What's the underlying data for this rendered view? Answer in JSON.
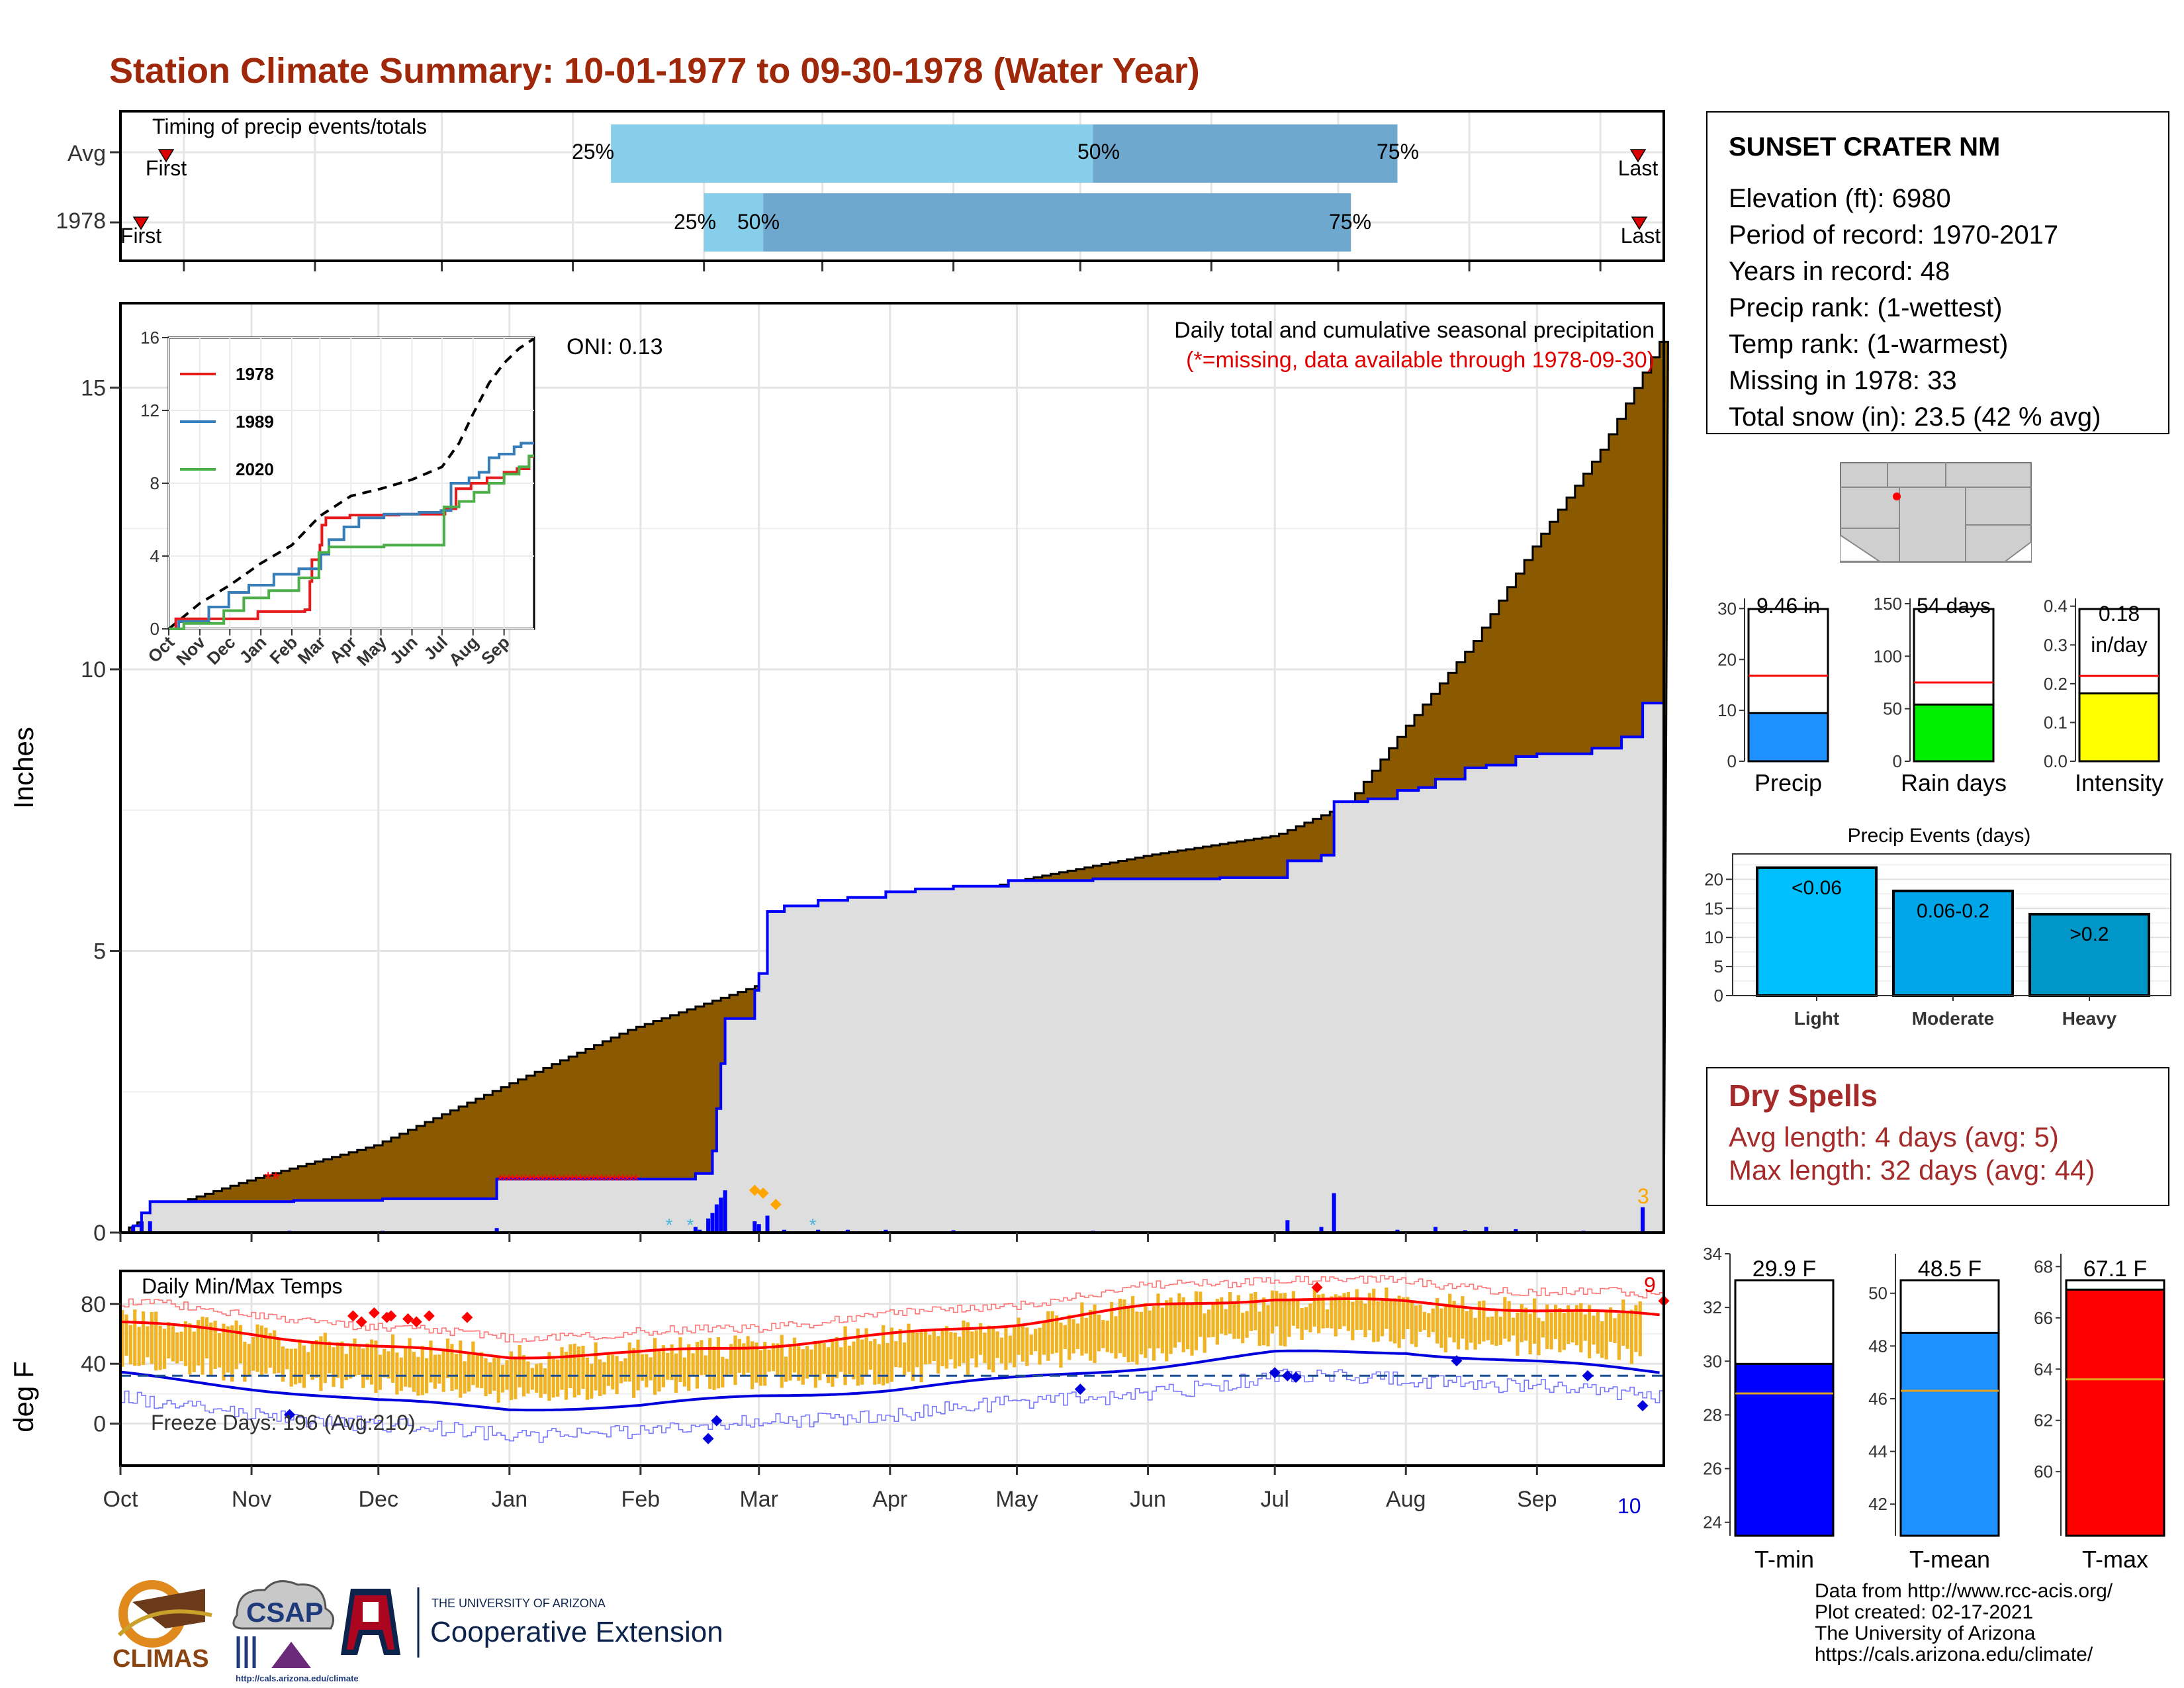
{
  "title": "Station Climate Summary: 10-01-1977 to 09-30-1978 (Water Year)",
  "timing": {
    "label": "Timing of precip events/totals",
    "rows": [
      {
        "label": "Avg",
        "p25": "Jan 25",
        "p50": "May 19",
        "p75": "Jul 30",
        "first_label": "First",
        "last_label": "Last"
      },
      {
        "label": "1978",
        "p25": "Feb 16",
        "p50": "Mar 1",
        "p75": "Jul 19",
        "first_label": "First",
        "last_label": "Last"
      }
    ],
    "pct_labels": [
      "25%",
      "50%",
      "75%"
    ]
  },
  "station": {
    "name": "SUNSET CRATER NM",
    "lines": [
      "Elevation (ft): 6980",
      "Period of record: 1970-2017",
      "Years in record: 48",
      "Precip rank:  (1-wettest)",
      "Temp rank:  (1-warmest)",
      "Missing in 1978: 33",
      "Total snow (in): 23.5 (42 % avg)"
    ]
  },
  "precip_chart": {
    "title": "Daily total and cumulative seasonal precipitation",
    "subtitle": "(*=missing, data available through 1978-09-30)",
    "oni": "ONI: 0.13",
    "ylabel": "Inches",
    "yticks": [
      "0",
      "5",
      "10",
      "15"
    ],
    "count_label": "3",
    "ylim": [
      0,
      16.5
    ]
  },
  "inset": {
    "yticks": [
      "0",
      "4",
      "8",
      "12",
      "16"
    ],
    "xticks": [
      "Oct",
      "Nov",
      "Dec",
      "Jan",
      "Feb",
      "Mar",
      "Apr",
      "May",
      "Jun",
      "Jul",
      "Aug",
      "Sep"
    ],
    "legend": [
      {
        "name": "1978",
        "color": "#e41a1c"
      },
      {
        "name": "1989",
        "color": "#377eb8"
      },
      {
        "name": "2020",
        "color": "#4daf4a"
      }
    ]
  },
  "temp_chart": {
    "title": "Daily Min/Max Temps",
    "freeze": "Freeze Days: 196 (Avg:210)",
    "ylabel": "deg F",
    "yticks": [
      "0",
      "40",
      "80"
    ],
    "count_high": "9",
    "count_low": "10",
    "freeze_line": 32
  },
  "months": [
    "Oct",
    "Nov",
    "Dec",
    "Jan",
    "Feb",
    "Mar",
    "Apr",
    "May",
    "Jun",
    "Jul",
    "Aug",
    "Sep"
  ],
  "bar_panels": {
    "precip": {
      "label": "Precip",
      "value_text": "9.46 in",
      "value": 9.46,
      "avg": 16.8,
      "yticks": [
        "0",
        "10",
        "20",
        "30"
      ],
      "color": "#1e90ff"
    },
    "raindays": {
      "label": "Rain days",
      "value_text": "54 days",
      "value": 54,
      "avg": 75,
      "yticks": [
        "0",
        "50",
        "100",
        "150"
      ],
      "color": "#00ee00"
    },
    "intensity": {
      "label": "Intensity",
      "value_text": "0.18",
      "value_text2": "in/day",
      "value": 0.175,
      "avg": 0.22,
      "yticks": [
        "0.0",
        "0.1",
        "0.2",
        "0.3",
        "0.4"
      ],
      "color": "#ffff00"
    }
  },
  "events": {
    "title": "Precip Events (days)",
    "yticks": [
      "0",
      "5",
      "10",
      "15",
      "20"
    ],
    "bars": [
      {
        "cat": "Light",
        "label": "<0.06",
        "value": 22,
        "color": "#00bfff"
      },
      {
        "cat": "Moderate",
        "label": "0.06-0.2",
        "value": 18,
        "color": "#00a6e8"
      },
      {
        "cat": "Heavy",
        "label": ">0.2",
        "value": 14,
        "color": "#0096c7"
      }
    ]
  },
  "dry_spells": {
    "title": "Dry Spells",
    "avg": "Avg length: 4 days (avg: 5)",
    "max": "Max length: 32 days (avg: 44)"
  },
  "temp_bars": [
    {
      "label": "T-min",
      "value_text": "29.9 F",
      "value": 29.9,
      "avg": 28.8,
      "ylim": [
        23.5,
        34
      ],
      "yticks": [
        "24",
        "26",
        "28",
        "30",
        "32",
        "34"
      ],
      "color": "#0000ff"
    },
    {
      "label": "T-mean",
      "value_text": "48.5 F",
      "value": 48.5,
      "avg": 46.3,
      "ylim": [
        40.8,
        51.5
      ],
      "yticks": [
        "42",
        "44",
        "46",
        "48",
        "50"
      ],
      "color": "#1e90ff"
    },
    {
      "label": "T-max",
      "value_text": "67.1 F",
      "value": 67.1,
      "avg": 63.6,
      "ylim": [
        57.5,
        68.5
      ],
      "yticks": [
        "60",
        "62",
        "64",
        "66",
        "68"
      ],
      "color": "#ff0000"
    }
  ],
  "credits": [
    "Data from http://www.rcc-acis.org/",
    "Plot created: 02-17-2021",
    "The University of Arizona",
    "https://cals.arizona.edu/climate/"
  ],
  "logos": {
    "climas": "CLIMAS",
    "csap": "CSAP",
    "csap_url": "http://cals.arizona.edu/climate",
    "ua_small": "THE UNIVERSITY OF ARIZONA",
    "ua_big": "Cooperative Extension"
  },
  "chart_data": [
    {
      "type": "area",
      "title": "Daily total and cumulative seasonal precipitation",
      "ylabel": "Inches",
      "ylim": [
        0,
        16.5
      ],
      "x": [
        "Oct",
        "Nov",
        "Dec",
        "Jan",
        "Feb",
        "Mar",
        "Apr",
        "May",
        "Jun",
        "Jul",
        "Aug",
        "Sep",
        "end"
      ],
      "series": [
        {
          "name": "Avg",
          "values": [
            0.0,
            1.2,
            2.0,
            3.4,
            4.8,
            6.0,
            7.4,
            7.9,
            8.5,
            8.9,
            11.0,
            14.0,
            15.9
          ]
        },
        {
          "name": "1978",
          "values": [
            0.0,
            0.55,
            0.55,
            0.95,
            1.6,
            5.8,
            6.1,
            6.25,
            6.3,
            6.3,
            7.9,
            8.5,
            9.46
          ]
        }
      ]
    },
    {
      "type": "line",
      "title": "Daily Min/Max Temps",
      "ylabel": "deg F",
      "ylim": [
        -28,
        102
      ],
      "x": [
        "Oct",
        "Nov",
        "Dec",
        "Jan",
        "Feb",
        "Mar",
        "Apr",
        "May",
        "Jun",
        "Jul",
        "Aug",
        "Sep",
        "end"
      ],
      "series": [
        {
          "name": "avg max",
          "values": [
            68,
            60,
            51,
            45,
            47,
            52,
            59,
            67,
            78,
            84,
            81,
            76,
            72
          ]
        },
        {
          "name": "avg min",
          "values": [
            33,
            24,
            15,
            10,
            12,
            18,
            23,
            30,
            38,
            47,
            48,
            41,
            34
          ]
        }
      ]
    }
  ]
}
